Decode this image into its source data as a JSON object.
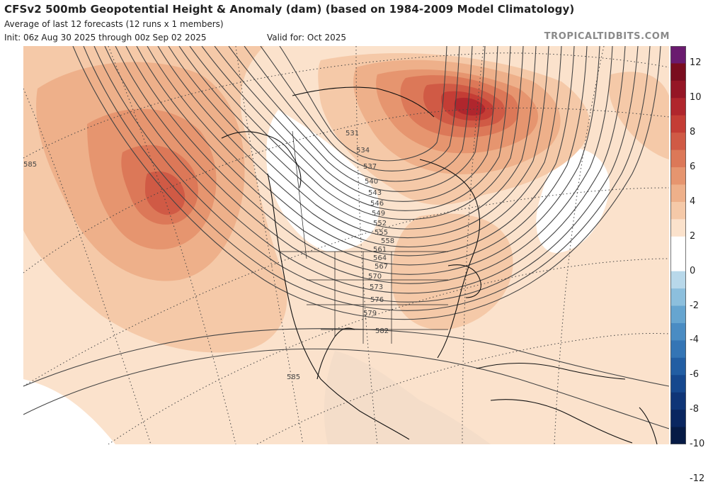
{
  "header": {
    "title": "CFSv2 500mb Geopotential Height & Anomaly (dam) (based on 1984-2009 Model Climatology)",
    "subtitle": "Average of last 12 forecasts (12 runs x 1 members)",
    "init": "Init: 06z Aug 30 2025 through 00z Sep 02 2025",
    "valid": "Valid for: Oct 2025",
    "brand": "TROPICALTIDBITS.COM"
  },
  "colorbar": {
    "labels": [
      "12",
      "10",
      "8",
      "6",
      "4",
      "2",
      "0",
      "-2",
      "-4",
      "-6",
      "-8",
      "-10",
      "-12"
    ],
    "colors": [
      "#6a1b6f",
      "#7a0d1f",
      "#951626",
      "#b0262d",
      "#c43d35",
      "#d05a45",
      "#dc7858",
      "#e6956f",
      "#eeb08a",
      "#f5c9a8",
      "#fbe2cc",
      "#ffffff",
      "#ffffff",
      "#b8d8ea",
      "#8cbfdd",
      "#66a5d0",
      "#4a8cc3",
      "#3475b5",
      "#225ea3",
      "#16488e",
      "#0f3577",
      "#0a2660",
      "#061a45"
    ]
  },
  "map": {
    "contour_labels": [
      "585",
      "531",
      "534",
      "537",
      "540",
      "543",
      "546",
      "549",
      "552",
      "555",
      "558",
      "561",
      "564",
      "567",
      "570",
      "573",
      "576",
      "579",
      "582",
      "585"
    ],
    "anomaly_colors": {
      "plus1": "#fbe2cc",
      "plus2": "#f5c9a8",
      "plus3": "#eeb08a",
      "plus4": "#e6956f",
      "plus5": "#dc7858",
      "plus6": "#d05a45",
      "plus7": "#c43d35",
      "plus8": "#b0262d",
      "neutral": "#ffffff"
    }
  }
}
